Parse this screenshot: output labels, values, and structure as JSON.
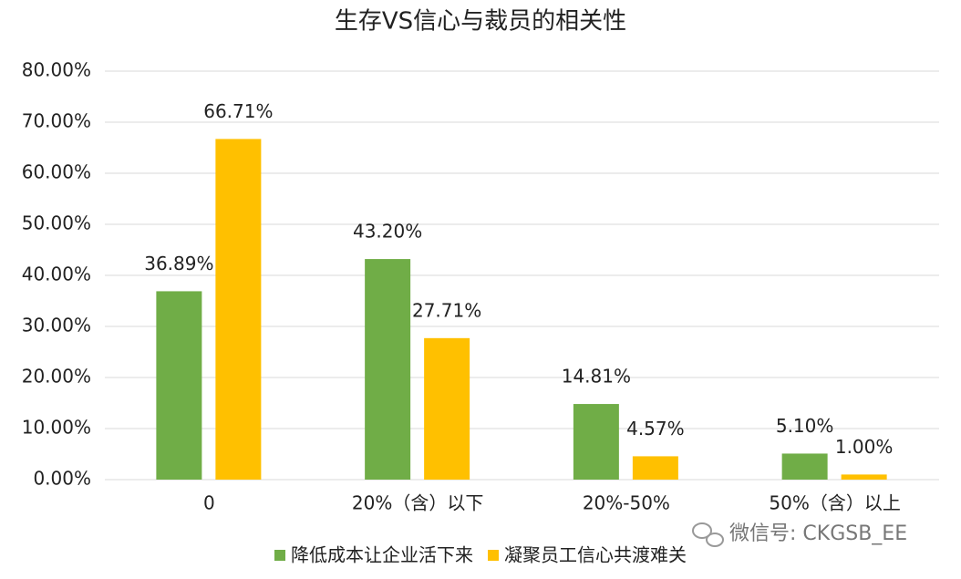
{
  "chart_data": {
    "type": "bar",
    "title": "生存VS信心与裁员的相关性",
    "categories": [
      "0",
      "20%（含）以下",
      "20%-50%",
      "50%（含）以上"
    ],
    "series": [
      {
        "name": "降低成本让企业活下来",
        "color": "#70ad47",
        "values": [
          36.89,
          43.2,
          14.81,
          5.1
        ],
        "value_labels": [
          "36.89%",
          "43.20%",
          "14.81%",
          "5.10%"
        ]
      },
      {
        "name": "凝聚员工信心共渡难关",
        "color": "#ffc000",
        "values": [
          66.71,
          27.71,
          4.57,
          1.0
        ],
        "value_labels": [
          "66.71%",
          "27.71%",
          "4.57%",
          "1.00%"
        ]
      }
    ],
    "ylim": [
      0,
      80
    ],
    "yticks": [
      {
        "value": 0,
        "label": "0.00%"
      },
      {
        "value": 10,
        "label": "10.00%"
      },
      {
        "value": 20,
        "label": "20.00%"
      },
      {
        "value": 30,
        "label": "30.00%"
      },
      {
        "value": 40,
        "label": "40.00%"
      },
      {
        "value": 50,
        "label": "50.00%"
      },
      {
        "value": 60,
        "label": "60.00%"
      },
      {
        "value": 70,
        "label": "70.00%"
      },
      {
        "value": 80,
        "label": "80.00%"
      }
    ],
    "grid": true,
    "legend": "bottom",
    "watermark": "微信号: CKGSB_EE"
  }
}
